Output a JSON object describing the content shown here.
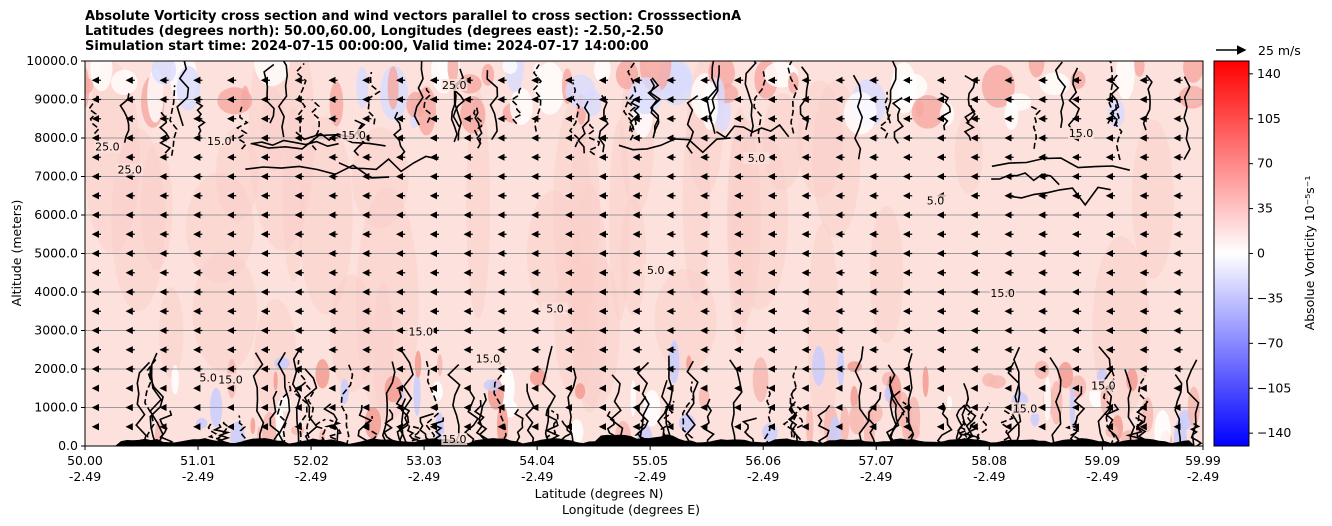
{
  "title_lines": [
    "Absolute Vorticity cross section and wind vectors parallel to cross section: CrosssectionA",
    "Latitudes (degrees north): 50.00,60.00, Longitudes (degrees east): -2.50,-2.50",
    "Simulation start time: 2024-07-15 00:00:00, Valid time: 2024-07-17 14:00:00"
  ],
  "chart_data": {
    "type": "heatmap",
    "xlabel_1": "Latitude (degrees N)",
    "xlabel_2": "Longitude (degrees E)",
    "ylabel": "Altitude (meters)",
    "ylim": [
      0,
      10000
    ],
    "yticks": [
      0,
      1000,
      2000,
      3000,
      4000,
      5000,
      6000,
      7000,
      8000,
      9000,
      10000
    ],
    "ytick_labels": [
      "0.0",
      "1000.0",
      "2000.0",
      "3000.0",
      "4000.0",
      "5000.0",
      "6000.0",
      "7000.0",
      "8000.0",
      "9000.0",
      "10000.0"
    ],
    "xlim": [
      50.0,
      59.99
    ],
    "xticks": [
      50.0,
      51.01,
      52.02,
      53.03,
      54.04,
      55.05,
      56.06,
      57.07,
      58.08,
      59.09,
      59.99
    ],
    "xtick_lat_labels": [
      "50.00",
      "51.01",
      "52.02",
      "53.03",
      "54.04",
      "55.05",
      "56.06",
      "57.07",
      "58.08",
      "59.09",
      "59.99"
    ],
    "xtick_lon_labels": [
      "-2.49",
      "-2.49",
      "-2.49",
      "-2.49",
      "-2.49",
      "-2.49",
      "-2.49",
      "-2.49",
      "-2.49",
      "-2.49",
      "-2.49"
    ],
    "colorbar": {
      "label": "Absolue Vorticity 10⁻⁵s⁻¹",
      "range": [
        -150,
        150
      ],
      "ticks": [
        140,
        105,
        70,
        35,
        0,
        -35,
        -70,
        -105,
        -140
      ],
      "tick_labels": [
        "140",
        "105",
        "70",
        "35",
        "0",
        "−35",
        "−70",
        "−105",
        "−140"
      ],
      "colormap": "bwr",
      "color_high": "#ff0000",
      "color_mid": "#ffffff",
      "color_low": "#0000ff"
    },
    "quiver_key": {
      "label": "25 m/s"
    },
    "background_field_value": 12,
    "contour_labels": [
      {
        "text": "15.0",
        "lat": 51.2,
        "alt": 7850
      },
      {
        "text": "15.0",
        "lat": 52.4,
        "alt": 8000
      },
      {
        "text": "15.0",
        "lat": 58.9,
        "alt": 8050
      },
      {
        "text": "25.0",
        "lat": 50.2,
        "alt": 7700
      },
      {
        "text": "25.0",
        "lat": 50.4,
        "alt": 7100
      },
      {
        "text": "15.0",
        "lat": 53.0,
        "alt": 2900
      },
      {
        "text": "5.0",
        "lat": 55.1,
        "alt": 4500
      },
      {
        "text": "5.0",
        "lat": 54.2,
        "alt": 3500
      },
      {
        "text": "15.0",
        "lat": 53.6,
        "alt": 2200
      },
      {
        "text": "5.0",
        "lat": 51.1,
        "alt": 1700
      },
      {
        "text": "15.0",
        "lat": 51.3,
        "alt": 1650
      },
      {
        "text": "15.0",
        "lat": 59.1,
        "alt": 1500
      },
      {
        "text": "15.0",
        "lat": 58.2,
        "alt": 3900
      },
      {
        "text": "25.0",
        "lat": 53.3,
        "alt": 9300
      },
      {
        "text": "15.0",
        "lat": 53.3,
        "alt": 100
      },
      {
        "text": "5.0",
        "lat": 56.0,
        "alt": 7400
      },
      {
        "text": "5.0",
        "lat": 57.6,
        "alt": 6300
      },
      {
        "text": "15.0",
        "lat": 58.4,
        "alt": 900
      }
    ]
  }
}
